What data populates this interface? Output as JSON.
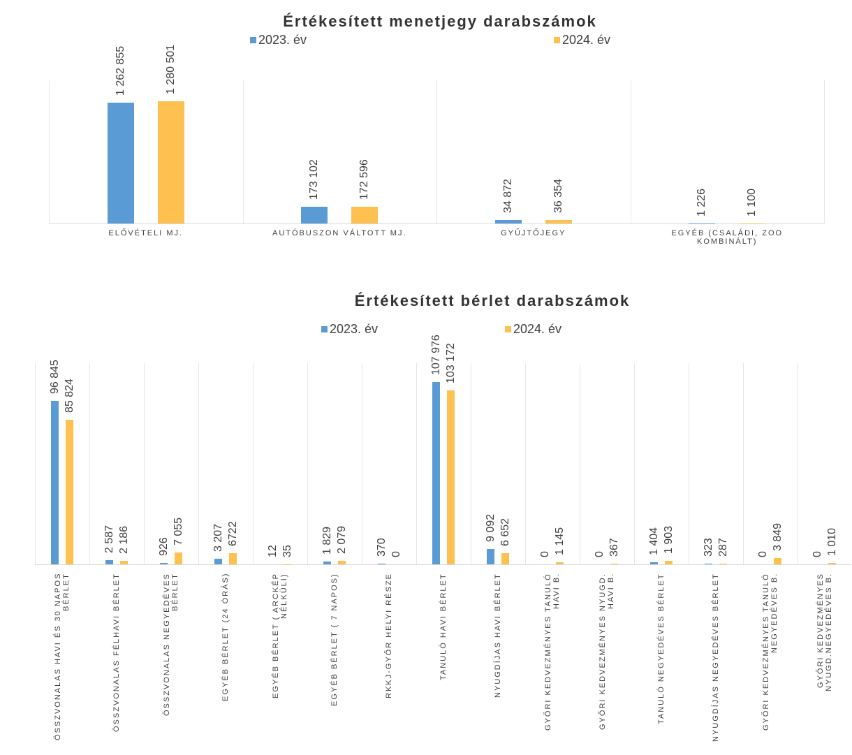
{
  "chart_data": [
    {
      "type": "bar",
      "title": "Értékesített menetjegy darabszámok",
      "categories": [
        "ELŐVÉTELI MJ.",
        "AUTÓBUSZON VÁLTOTT MJ.",
        "GYŰJTŐJEGY",
        "EGYÉB (CSALÁDI, ZOO KOMBINÁLT)"
      ],
      "series": [
        {
          "name": "2023. év",
          "color": "#5b9bd5",
          "values": [
            1262855,
            173102,
            34872,
            1226
          ],
          "value_labels": [
            "1 262 855",
            "173 102",
            "34 872",
            "1 226"
          ]
        },
        {
          "name": "2024. év",
          "color": "#fec04e",
          "values": [
            1280501,
            172596,
            36354,
            1100
          ],
          "value_labels": [
            "1 280 501",
            "172 596",
            "36 354",
            "1 100"
          ]
        }
      ],
      "ylim": [
        0,
        1500000
      ]
    },
    {
      "type": "bar",
      "title": "Értékesített bérlet darabszámok",
      "categories": [
        "ÖSSZVONALAS HAVI ÉS 30 NAPOS BÉRLET",
        "ÖSSZVONALAS FÉLHAVI BÉRLET",
        "ÖSSZVONALAS NEGYEDÉVES BÉRLET",
        "EGYÉB BÉRLET (24 ÓRÁS)",
        "EGYÉB BÉRLET ( ARCKÉP NÉLKÜLI)",
        "EGYÉB BÉRLET ( 7 NAPOS)",
        "RKKJ-GYŐR HELYI RÉSZE",
        "TANULÓ HAVI BÉRLET",
        "NYUGDÍJAS HAVI BÉRLET",
        "GYŐRI KEDVEZMÉNYES TANULÓ HAVI B.",
        "GYŐRI KEDVEZMÉNYES NYUGD. HAVI B.",
        "TANULÓ NEGYEDÉVES BÉRLET",
        "NYUGDÍJAS NEGYEDÉVES BÉRLET",
        "GYŐRI KEDVEZMÉNYES TANULÓ NEGYEDÉVES B.",
        "GYŐRI KEDVEZMÉNYES NYUGD.NEGYEDÉVES B."
      ],
      "series": [
        {
          "name": "2023. év",
          "color": "#5b9bd5",
          "values": [
            96845,
            2587,
            926,
            3207,
            12,
            1829,
            370,
            107976,
            9092,
            0,
            0,
            1404,
            323,
            0,
            0
          ],
          "value_labels": [
            "96 845",
            "2 587",
            "926",
            "3 207",
            "12",
            "1 829",
            "370",
            "107 976",
            "9 092",
            "0",
            "0",
            "1 404",
            "323",
            "0",
            "0"
          ]
        },
        {
          "name": "2024. év",
          "color": "#fec04e",
          "values": [
            85824,
            2186,
            7055,
            6722,
            35,
            2079,
            0,
            103172,
            6652,
            1145,
            367,
            1903,
            287,
            3849,
            1010
          ],
          "value_labels": [
            "85 824",
            "2 186",
            "7 055",
            "6722",
            "35",
            "2 079",
            "0",
            "103 172",
            "6 652",
            "1 145",
            "367",
            "1 903",
            "287",
            "3 849",
            "1 010"
          ]
        }
      ],
      "ylim": [
        0,
        120000
      ]
    }
  ]
}
